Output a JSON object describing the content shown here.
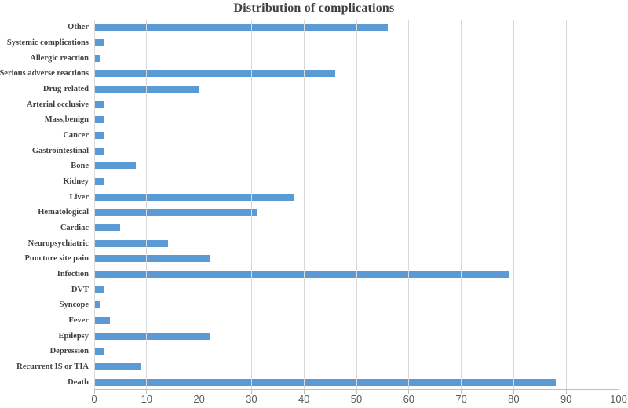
{
  "chart_data": {
    "type": "bar",
    "orientation": "horizontal",
    "title": "Distribution of complications",
    "categories": [
      "Other",
      "Systemic complications",
      "Allergic reaction",
      "Serious adverse reactions",
      "Drug-related",
      "Arterial occlusive",
      "Mass,benign",
      "Cancer",
      "Gastrointestinal",
      "Bone",
      "Kidney",
      "Liver",
      "Hematological",
      "Cardiac",
      "Neuropsychiatric",
      "Puncture site pain",
      "Infection",
      "DVT",
      "Syncope",
      "Fever",
      "Epilepsy",
      "Depression",
      "Recurrent IS or TIA",
      "Death"
    ],
    "values": [
      56,
      2,
      1,
      46,
      20,
      2,
      2,
      2,
      2,
      8,
      2,
      38,
      31,
      5,
      14,
      22,
      79,
      2,
      1,
      3,
      22,
      2,
      9,
      88
    ],
    "xlabel": "",
    "ylabel": "",
    "xlim": [
      0,
      100
    ],
    "xticks": [
      0,
      10,
      20,
      30,
      40,
      50,
      60,
      70,
      80,
      90,
      100
    ],
    "grid": true,
    "legend": "none",
    "colors": {
      "bar": "#5B9BD5",
      "gridline": "#D9D9D9",
      "axis": "#BFBFBF",
      "tick_label": "#595959",
      "category_label": "#404040",
      "title": "#404040",
      "background": "#ffffff"
    }
  }
}
